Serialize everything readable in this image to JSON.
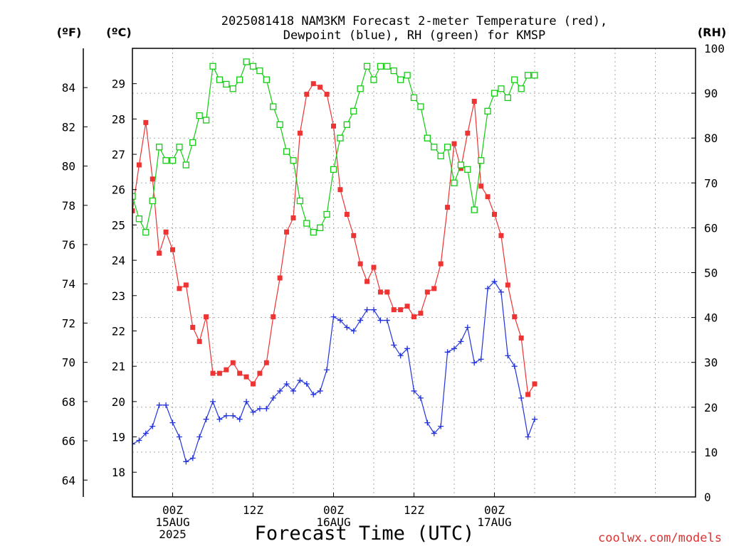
{
  "chart_data": {
    "type": "line",
    "title_line1": "2025081418 NAM3KM Forecast 2-meter Temperature (red),",
    "title_line2": "Dewpoint (blue), RH (green) for KMSP",
    "xlabel": "Forecast Time (UTC)",
    "left_f_axis_label": "(ºF)",
    "left_c_axis_label": "(ºC)",
    "right_axis_label": "(RH)",
    "watermark": "coolwx.com/models",
    "x_hours_from_init": [
      0,
      84
    ],
    "x_hour_step": 1,
    "x_ticks": [
      {
        "hour": 6,
        "label1": "00Z",
        "label2": "15AUG",
        "label3": "2025"
      },
      {
        "hour": 18,
        "label1": "12Z",
        "label2": "",
        "label3": ""
      },
      {
        "hour": 30,
        "label1": "00Z",
        "label2": "16AUG",
        "label3": ""
      },
      {
        "hour": 42,
        "label1": "12Z",
        "label2": "",
        "label3": ""
      },
      {
        "hour": 54,
        "label1": "00Z",
        "label2": "17AUG",
        "label3": ""
      }
    ],
    "celsius_axis": {
      "range": [
        17.3,
        30.0
      ],
      "ticks": [
        "18",
        "19",
        "20",
        "21",
        "22",
        "23",
        "24",
        "25",
        "26",
        "27",
        "28",
        "29"
      ]
    },
    "fahrenheit_axis": {
      "ticks": [
        "64",
        "66",
        "68",
        "70",
        "72",
        "74",
        "76",
        "78",
        "80",
        "82",
        "84"
      ]
    },
    "rh_axis": {
      "range": [
        0,
        100
      ],
      "ticks": [
        "0",
        "10",
        "20",
        "30",
        "40",
        "50",
        "60",
        "70",
        "80",
        "90",
        "100"
      ]
    },
    "grid": true,
    "colors": {
      "temperature": "#ee3333",
      "dewpoint": "#2233dd",
      "rh": "#11cc11",
      "grid": "#aaaaaa",
      "watermark": "#dd3333"
    },
    "series": [
      {
        "name": "Temperature",
        "unit": "C",
        "marker": "filled-square",
        "values": [
          25.4,
          26.7,
          27.9,
          26.3,
          24.2,
          24.8,
          24.3,
          23.2,
          23.3,
          22.1,
          21.7,
          22.4,
          20.8,
          20.8,
          20.9,
          21.1,
          20.8,
          20.7,
          20.5,
          20.8,
          21.1,
          22.4,
          23.5,
          24.8,
          25.2,
          27.6,
          28.7,
          29.0,
          28.9,
          28.7,
          27.8,
          26.0,
          25.3,
          24.7,
          23.9,
          23.4,
          23.8,
          23.1,
          23.1,
          22.6,
          22.6,
          22.7,
          22.4,
          22.5,
          23.1,
          23.2,
          23.9,
          25.5,
          27.3,
          26.6,
          27.6,
          28.5,
          26.1,
          25.8,
          25.3,
          24.7,
          23.3,
          22.4,
          21.8,
          20.2,
          20.5
        ]
      },
      {
        "name": "Dewpoint",
        "unit": "C",
        "marker": "plus",
        "values": [
          18.8,
          18.9,
          19.1,
          19.3,
          19.9,
          19.9,
          19.4,
          19.0,
          18.3,
          18.4,
          19.0,
          19.5,
          20.0,
          19.5,
          19.6,
          19.6,
          19.5,
          20.0,
          19.7,
          19.8,
          19.8,
          20.1,
          20.3,
          20.5,
          20.3,
          20.6,
          20.5,
          20.2,
          20.3,
          20.9,
          22.4,
          22.3,
          22.1,
          22.0,
          22.3,
          22.6,
          22.6,
          22.3,
          22.3,
          21.6,
          21.3,
          21.5,
          20.3,
          20.1,
          19.4,
          19.1,
          19.3,
          21.4,
          21.5,
          21.7,
          22.1,
          21.1,
          21.2,
          23.2,
          23.4,
          23.1,
          21.3,
          21.0,
          20.1,
          19.0,
          19.5
        ]
      },
      {
        "name": "RH",
        "unit": "%",
        "marker": "open-square",
        "values": [
          67,
          62,
          59,
          66,
          78,
          75,
          75,
          78,
          74,
          79,
          85,
          84,
          96,
          93,
          92,
          91,
          93,
          97,
          96,
          95,
          93,
          87,
          83,
          77,
          75,
          66,
          61,
          59,
          60,
          63,
          73,
          80,
          83,
          86,
          91,
          96,
          93,
          96,
          96,
          95,
          93,
          94,
          89,
          87,
          80,
          78,
          76,
          78,
          70,
          74,
          73,
          64,
          75,
          86,
          90,
          91,
          89,
          93,
          91,
          94,
          94
        ]
      }
    ]
  }
}
